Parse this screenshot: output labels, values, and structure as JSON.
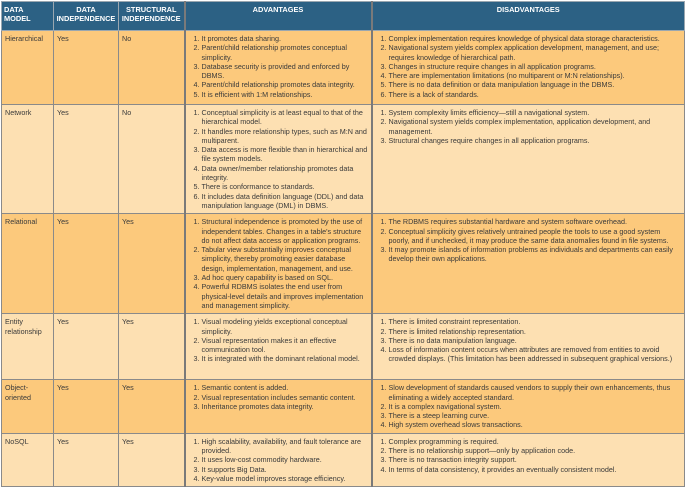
{
  "headers": [
    "DATA MODEL",
    "DATA INDEPENDENCE",
    "STRUCTURAL INDEPENDENCE",
    "ADVANTAGES",
    "DISADVANTAGES"
  ],
  "colors": {
    "header": "#2c6184",
    "row_dark": "#fcc97c",
    "row_light": "#fde0b2"
  },
  "rows": [
    {
      "model": "Hierarchical",
      "data_independence": "Yes",
      "structural_independence": "No",
      "advantages": [
        "It promotes data sharing.",
        "Parent/child relationship promotes conceptual simplicity.",
        "Database security is provided and enforced by DBMS.",
        "Parent/child relationship promotes data integrity.",
        "It is efficient with 1:M relationships."
      ],
      "disadvantages": [
        "Complex implementation requires knowledge of physical data storage characteristics.",
        "Navigational system yields complex application development, management, and use; requires knowledge of hierarchical path.",
        "Changes in structure require changes in all application programs.",
        "There are implementation limitations (no multiparent or M:N relationships).",
        "There is no data definition or data manipulation language in the DBMS.",
        "There is a lack of standards."
      ]
    },
    {
      "model": "Network",
      "data_independence": "Yes",
      "structural_independence": "No",
      "advantages": [
        "Conceptual simplicity is at least equal to that of the hierarchical model.",
        "It handles more relationship types, such as M:N and multiparent.",
        "Data access is more flexible than in hierarchical and file system models.",
        "Data owner/member relationship promotes data integrity.",
        "There is conformance to standards.",
        "It includes data definition language (DDL) and data manipulation language (DML) in DBMS."
      ],
      "disadvantages": [
        "System complexity limits efficiency—still a navigational system.",
        "Navigational system yields complex implementation, application development, and management.",
        "Structural changes require changes in all application programs."
      ]
    },
    {
      "model": "Relational",
      "data_independence": "Yes",
      "structural_independence": "Yes",
      "advantages": [
        "Structural independence is promoted by the use of independent tables. Changes in a table's structure do not affect data access or application programs.",
        "Tabular view substantially improves conceptual simplicity, thereby promoting easier database design, implementation, management, and use.",
        "Ad hoc query capability is based on SQL.",
        "Powerful RDBMS isolates the end user from physical-level details and improves implementation and management simplicity."
      ],
      "disadvantages": [
        "The RDBMS requires substantial hardware and system software overhead.",
        "Conceptual simplicity gives relatively untrained people the tools to use a good system poorly, and if unchecked, it may produce the same data anomalies found in file systems.",
        "It may promote islands of information problems as individuals and departments can easily develop their own applications."
      ]
    },
    {
      "model": "Entity relationship",
      "data_independence": "Yes",
      "structural_independence": "Yes",
      "advantages": [
        "Visual modeling yields exceptional conceptual simplicity.",
        "Visual representation makes it an effective communication tool.",
        "It is integrated with the dominant relational model."
      ],
      "disadvantages": [
        "There is limited constraint representation.",
        "There is limited relationship representation.",
        "There is no data manipulation language.",
        "Loss of information content occurs when attributes are removed from entities to avoid crowded displays. (This limitation has been addressed in subsequent graphical versions.)"
      ]
    },
    {
      "model": "Object-oriented",
      "data_independence": "Yes",
      "structural_independence": "Yes",
      "advantages": [
        "Semantic content is added.",
        "Visual representation includes semantic content.",
        "Inheritance promotes data integrity."
      ],
      "disadvantages": [
        "Slow development of standards caused vendors to supply their own enhancements, thus eliminating a widely accepted standard.",
        "It is a complex navigational system.",
        "There is a steep learning curve.",
        "High system overhead slows transactions."
      ]
    },
    {
      "model": "NoSQL",
      "data_independence": "Yes",
      "structural_independence": "Yes",
      "advantages": [
        "High scalability, availability, and fault tolerance are provided.",
        "It uses low-cost commodity hardware.",
        "It supports Big Data.",
        "Key-value model improves storage efficiency."
      ],
      "disadvantages": [
        "Complex programming is required.",
        "There is no relationship support—only by application code.",
        "There is no transaction integrity support.",
        "In terms of data consistency, it provides an eventually consistent model."
      ]
    }
  ]
}
